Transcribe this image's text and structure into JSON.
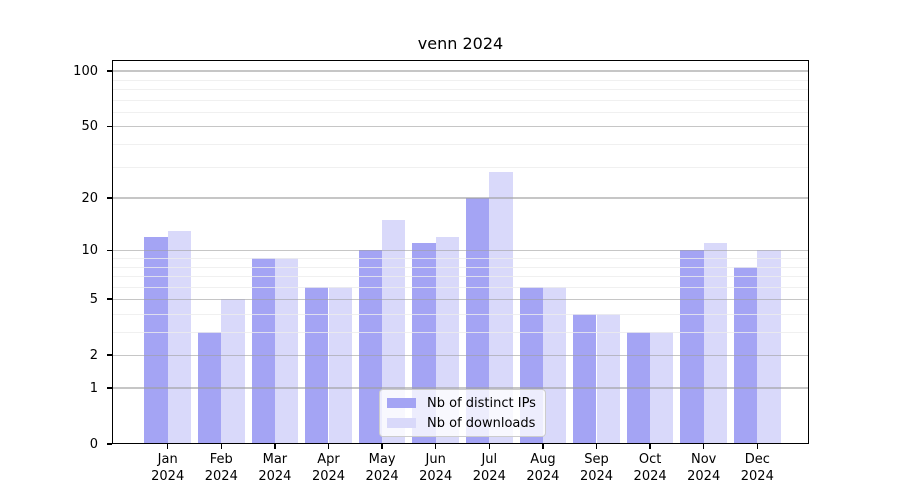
{
  "title": "venn 2024",
  "chart_data": {
    "type": "bar",
    "title": "venn 2024",
    "categories": [
      "Jan",
      "Feb",
      "Mar",
      "Apr",
      "May",
      "Jun",
      "Jul",
      "Aug",
      "Sep",
      "Oct",
      "Nov",
      "Dec"
    ],
    "x_tick_year": "2024",
    "series": [
      {
        "name": "Nb of distinct IPs",
        "color": "#a4a4f4",
        "values": [
          12,
          3,
          9,
          6,
          10,
          11,
          20,
          6,
          4,
          3,
          10,
          8
        ]
      },
      {
        "name": "Nb of downloads",
        "color": "#d9d9fa",
        "values": [
          13,
          5,
          9,
          6,
          15,
          12,
          28,
          6,
          4,
          3,
          11,
          10
        ]
      }
    ],
    "yscale": "log1p",
    "ylim": [
      0,
      117
    ],
    "yticks": [
      "0",
      "1",
      "2",
      "5",
      "10",
      "20",
      "50",
      "100"
    ],
    "minor_gridlines": [
      3,
      4,
      6,
      7,
      8,
      9,
      30,
      40,
      60,
      70,
      80,
      90
    ],
    "grid": true,
    "legend_position": "lower center",
    "axis_color": "#000000",
    "major_grid_color": "#c3c3c3",
    "minor_grid_color": "#f0f0f0",
    "background_color": "#ffffff"
  }
}
